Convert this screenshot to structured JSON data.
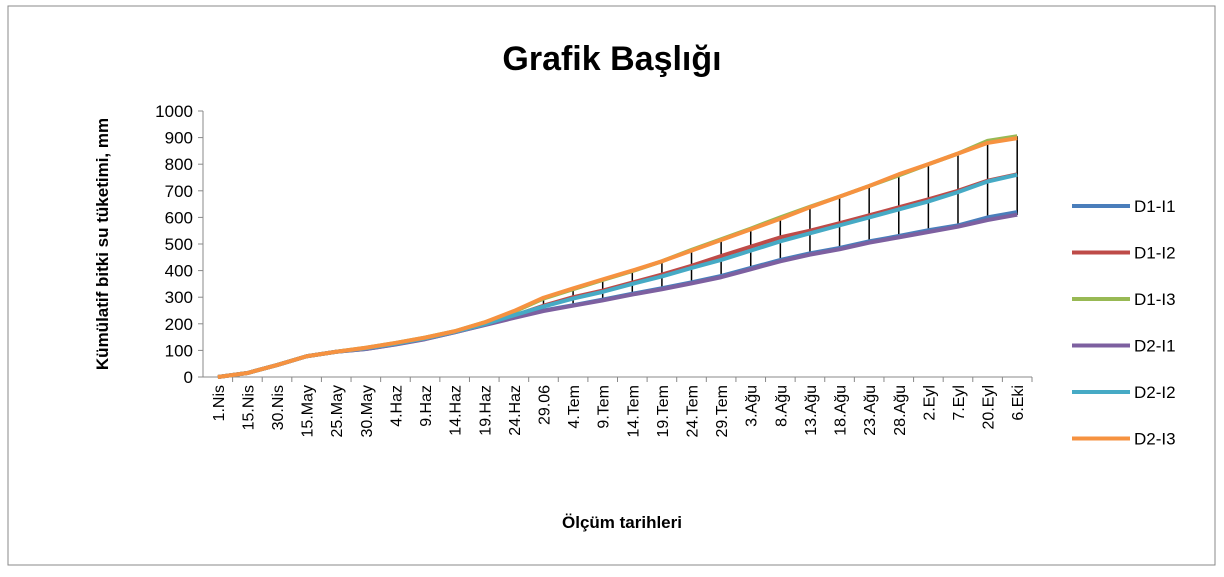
{
  "chart_data": {
    "type": "line",
    "title": "Grafik Başlığı",
    "x_label": "Ölçüm tarihleri",
    "y_label": "Kümülatif bitki su tüketimi, mm",
    "categories": [
      "1.Nis",
      "15.Nis",
      "30.Nis",
      "15.May",
      "25.May",
      "30.May",
      "4.Haz",
      "9.Haz",
      "14.Haz",
      "19.Haz",
      "24.Haz",
      "29.06",
      "4.Tem",
      "9.Tem",
      "14.Tem",
      "19.Tem",
      "24.Tem",
      "29.Tem",
      "3.Ağu",
      "8.Ağu",
      "13.Ağu",
      "18.Ağu",
      "23.Ağu",
      "28.Ağu",
      "2.Eyl",
      "7.Eyl",
      "20.Eyl",
      "6.Eki"
    ],
    "ylim": [
      0,
      1000
    ],
    "yticks": [
      0,
      100,
      200,
      300,
      400,
      500,
      600,
      700,
      800,
      900,
      1000
    ],
    "high_low_lines": true,
    "legend": "right",
    "series": [
      {
        "name": "D1-I1",
        "color": "#4a7ebb",
        "values": [
          0,
          15,
          45,
          78,
          95,
          105,
          123,
          143,
          168,
          196,
          224,
          250,
          270,
          291,
          313,
          334,
          356,
          380,
          410,
          440,
          465,
          485,
          510,
          530,
          552,
          570,
          600,
          620
        ]
      },
      {
        "name": "D1-I2",
        "color": "#be4b48",
        "values": [
          0,
          15,
          45,
          78,
          95,
          108,
          125,
          145,
          170,
          198,
          230,
          268,
          300,
          325,
          355,
          385,
          418,
          455,
          490,
          525,
          550,
          578,
          608,
          638,
          668,
          700,
          738,
          762
        ]
      },
      {
        "name": "D1-I3",
        "color": "#98b954",
        "values": [
          0,
          15,
          45,
          78,
          95,
          110,
          128,
          148,
          172,
          205,
          245,
          295,
          330,
          365,
          398,
          435,
          478,
          518,
          558,
          600,
          640,
          678,
          718,
          758,
          800,
          840,
          888,
          905
        ]
      },
      {
        "name": "D2-I1",
        "color": "#7d60a0",
        "values": [
          0,
          15,
          45,
          78,
          95,
          105,
          122,
          142,
          168,
          195,
          222,
          248,
          268,
          288,
          310,
          330,
          352,
          375,
          405,
          435,
          460,
          480,
          505,
          525,
          545,
          565,
          590,
          610
        ]
      },
      {
        "name": "D2-I2",
        "color": "#46aac5",
        "values": [
          0,
          15,
          45,
          78,
          95,
          108,
          125,
          145,
          170,
          198,
          232,
          265,
          295,
          320,
          350,
          378,
          410,
          440,
          475,
          510,
          540,
          570,
          600,
          630,
          660,
          695,
          735,
          760
        ]
      },
      {
        "name": "D2-I3",
        "color": "#f69240",
        "values": [
          0,
          15,
          45,
          78,
          95,
          110,
          128,
          148,
          172,
          205,
          248,
          298,
          333,
          367,
          400,
          435,
          475,
          515,
          555,
          595,
          638,
          678,
          718,
          762,
          800,
          840,
          880,
          898
        ]
      }
    ]
  }
}
